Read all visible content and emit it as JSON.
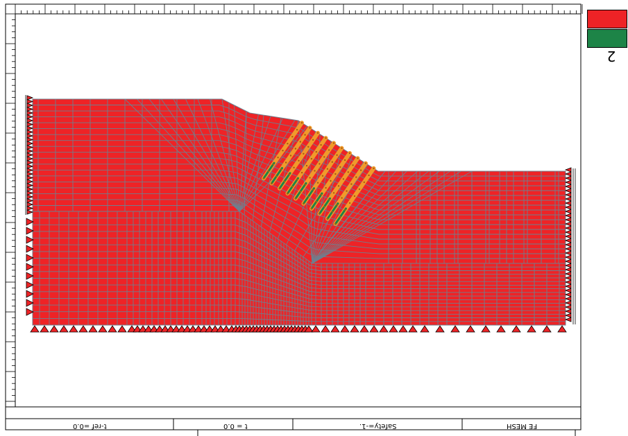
{
  "legend": {
    "items": [
      {
        "id": "1",
        "color": "#ee2326"
      },
      {
        "id": "2",
        "color": "#1d8447"
      }
    ],
    "label": "2"
  },
  "status_bar": {
    "t_ref": "t-ref =0.0",
    "time": "t = 0.0",
    "safety": "Safety=-1.",
    "program": "FE MESH"
  },
  "colors": {
    "material": "#ee2326",
    "mesh_line": "#6f7f8e",
    "support": "#ee2326",
    "anchor": "#f09a2b",
    "anchor_core": "#1d8447"
  }
}
